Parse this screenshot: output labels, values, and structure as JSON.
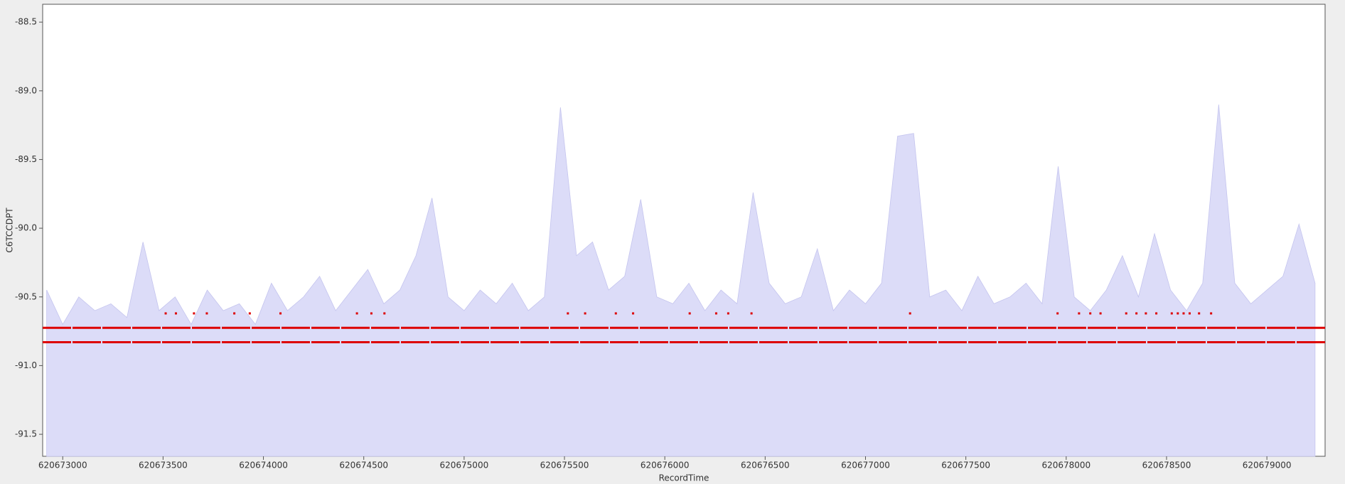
{
  "chart_data": {
    "type": "area",
    "xlabel": "RecordTime",
    "ylabel": "C6TCCDPT",
    "xlim": [
      620672900,
      620679290
    ],
    "ylim": [
      -91.66,
      -88.37
    ],
    "xticks": [
      620673000,
      620673500,
      620674000,
      620674500,
      620675000,
      620675500,
      620676000,
      620676500,
      620677000,
      620677500,
      620678000,
      620678500,
      620679000
    ],
    "yticks": [
      -88.5,
      {
        "value": -89,
        "label": "-89.0"
      },
      -89.5,
      {
        "value": -90,
        "label": "-90.0"
      },
      -90.5,
      {
        "value": -91,
        "label": "-91.0"
      },
      -91.5
    ],
    "series": [
      {
        "style": "area",
        "color": "#dcdcf8",
        "x": [
          620672920,
          620673000,
          620673080,
          620673160,
          620673240,
          620673320,
          620673400,
          620673480,
          620673560,
          620673640,
          620673720,
          620673800,
          620673880,
          620673960,
          620674040,
          620674120,
          620674200,
          620674280,
          620674360,
          620674440,
          620674520,
          620674600,
          620674680,
          620674760,
          620674840,
          620674920,
          620675000,
          620675080,
          620675160,
          620675240,
          620675320,
          620675400,
          620675480,
          620675560,
          620675640,
          620675720,
          620675800,
          620675880,
          620675960,
          620676040,
          620676120,
          620676200,
          620676280,
          620676360,
          620676440,
          620676520,
          620676600,
          620676680,
          620676760,
          620676840,
          620676920,
          620677000,
          620677080,
          620677160,
          620677240,
          620677320,
          620677400,
          620677480,
          620677560,
          620677640,
          620677720,
          620677800,
          620677880,
          620677960,
          620678040,
          620678120,
          620678200,
          620678280,
          620678360,
          620678440,
          620678520,
          620678600,
          620678680,
          620678760,
          620678840,
          620678920,
          620679000,
          620679080,
          620679160,
          620679240
        ],
        "values": [
          -90.45,
          -90.7,
          -90.5,
          -90.6,
          -90.55,
          -90.65,
          -90.1,
          -90.6,
          -90.5,
          -90.7,
          -90.45,
          -90.6,
          -90.55,
          -90.7,
          -90.4,
          -90.6,
          -90.5,
          -90.35,
          -90.6,
          -90.45,
          -90.3,
          -90.55,
          -90.45,
          -90.2,
          -89.78,
          -90.5,
          -90.6,
          -90.45,
          -90.55,
          -90.4,
          -90.6,
          -90.5,
          -89.12,
          -90.2,
          -90.1,
          -90.45,
          -90.35,
          -89.79,
          -90.5,
          -90.55,
          -90.4,
          -90.6,
          -90.45,
          -90.55,
          -89.74,
          -90.4,
          -90.55,
          -90.5,
          -90.15,
          -90.6,
          -90.45,
          -90.55,
          -90.4,
          -89.33,
          -89.31,
          -90.5,
          -90.45,
          -90.6,
          -90.35,
          -90.55,
          -90.5,
          -90.4,
          -90.55,
          -89.55,
          -90.5,
          -90.6,
          -90.45,
          -90.2,
          -90.5,
          -90.04,
          -90.45,
          -90.6,
          -90.4,
          -89.1,
          -90.4,
          -90.55,
          -90.45,
          -90.35,
          -89.97,
          -90.4
        ]
      },
      {
        "style": "line",
        "color": "#dd0000",
        "x": [
          620672900,
          620679290
        ],
        "values": [
          -90.725,
          -90.725
        ]
      },
      {
        "style": "line",
        "color": "#dd0000",
        "x": [
          620672900,
          620679290
        ],
        "values": [
          -90.83,
          -90.83
        ]
      },
      {
        "style": "points",
        "color": "#dd0000",
        "x": [
          620673513,
          620673564,
          620673654,
          620673718,
          620673855,
          620673932,
          620674085,
          620674466,
          620674538,
          620674603,
          620675517,
          620675603,
          620675756,
          620675842,
          620676124,
          620676256,
          620676316,
          620676432,
          620677222,
          620677957,
          620678064,
          620678120,
          620678171,
          620678299,
          620678350,
          620678397,
          620678449,
          620678526,
          620678556,
          620678585,
          620678615,
          620678662,
          620678722
        ],
        "values": [
          -90.62,
          -90.62,
          -90.62,
          -90.62,
          -90.62,
          -90.62,
          -90.62,
          -90.62,
          -90.62,
          -90.62,
          -90.62,
          -90.62,
          -90.62,
          -90.62,
          -90.62,
          -90.62,
          -90.62,
          -90.62,
          -90.62,
          -90.62,
          -90.62,
          -90.62,
          -90.62,
          -90.62,
          -90.62,
          -90.62,
          -90.62,
          -90.62,
          -90.62,
          -90.62,
          -90.62,
          -90.62,
          -90.62
        ]
      }
    ]
  }
}
